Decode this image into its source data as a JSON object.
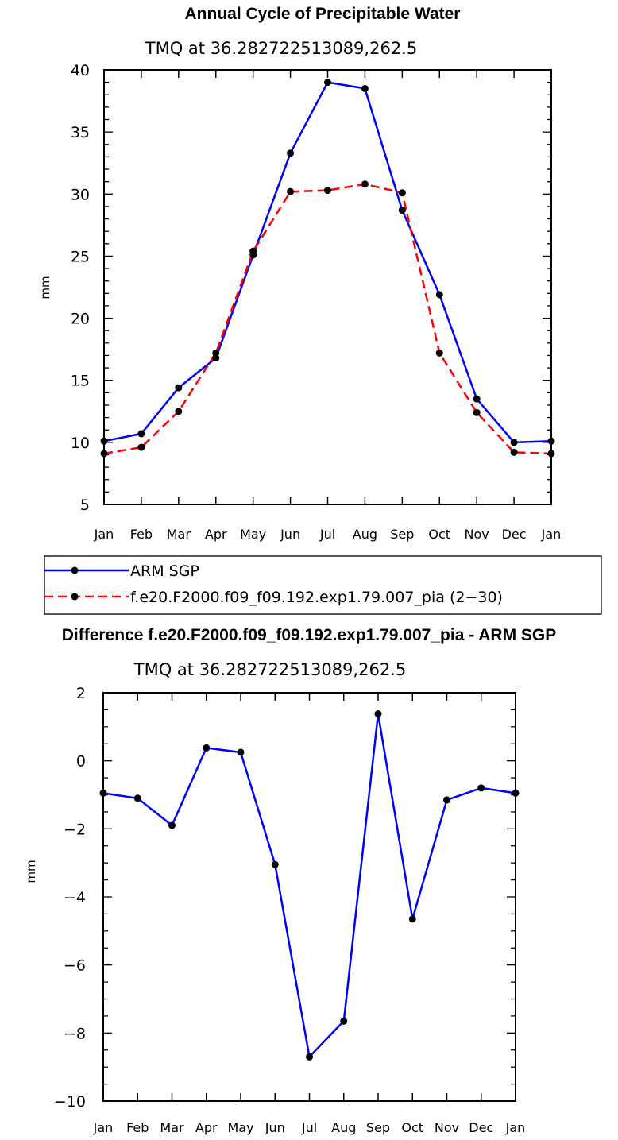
{
  "chart_data": [
    {
      "type": "line",
      "title": "Annual Cycle of Precipitable Water",
      "subtitle": "TMQ  at  36.282722513089,262.5",
      "xlabel": "",
      "ylabel": "mm",
      "categories": [
        "Jan",
        "Feb",
        "Mar",
        "Apr",
        "May",
        "Jun",
        "Jul",
        "Aug",
        "Sep",
        "Oct",
        "Nov",
        "Dec",
        "Jan"
      ],
      "ylim": [
        5,
        40
      ],
      "yticks": [
        "5",
        "10",
        "15",
        "20",
        "25",
        "30",
        "35",
        "40"
      ],
      "series": [
        {
          "name": "ARM SGP",
          "color": "#0000ff",
          "dash": "solid",
          "values": [
            10.1,
            10.7,
            14.4,
            16.8,
            25.1,
            33.3,
            39.0,
            38.5,
            28.7,
            21.9,
            13.5,
            10.0,
            10.1
          ]
        },
        {
          "name": "f.e20.F2000.f09_f09.192.exp1.79.007_pia (2−30)",
          "color": "#ff0000",
          "dash": "dashed",
          "values": [
            9.1,
            9.6,
            12.5,
            17.2,
            25.4,
            30.2,
            30.3,
            30.8,
            30.1,
            17.2,
            12.4,
            9.2,
            9.1
          ]
        }
      ],
      "legend": {
        "position": "below",
        "entries": [
          "ARM SGP",
          "f.e20.F2000.f09_f09.192.exp1.79.007_pia (2−30)"
        ]
      }
    },
    {
      "type": "line",
      "title": "Difference f.e20.F2000.f09_f09.192.exp1.79.007_pia - ARM SGP",
      "subtitle": "TMQ  at  36.282722513089,262.5",
      "xlabel": "",
      "ylabel": "mm",
      "categories": [
        "Jan",
        "Feb",
        "Mar",
        "Apr",
        "May",
        "Jun",
        "Jul",
        "Aug",
        "Sep",
        "Oct",
        "Nov",
        "Dec",
        "Jan"
      ],
      "ylim": [
        -10,
        2
      ],
      "yticks": [
        "−10",
        "−8",
        "−6",
        "−4",
        "−2",
        "0",
        "2"
      ],
      "series": [
        {
          "name": "Difference",
          "color": "#0000ff",
          "dash": "solid",
          "values": [
            -0.95,
            -1.1,
            -1.9,
            0.38,
            0.25,
            -3.05,
            -8.7,
            -7.65,
            1.38,
            -4.65,
            -1.15,
            -0.8,
            -0.95
          ]
        }
      ]
    }
  ]
}
